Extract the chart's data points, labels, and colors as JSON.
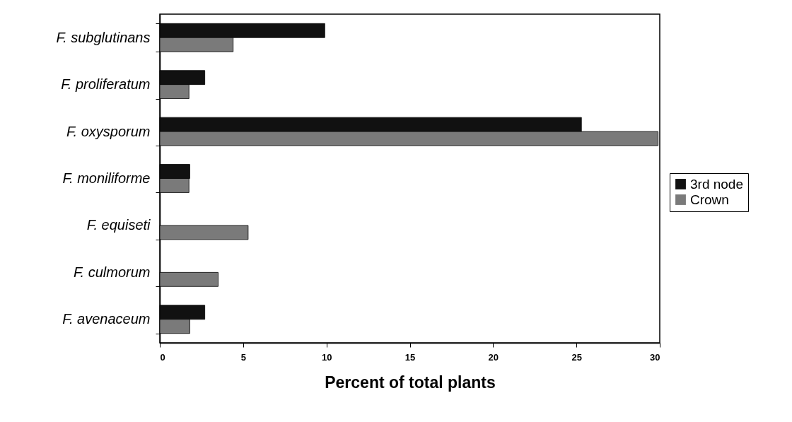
{
  "chart_data": {
    "type": "bar",
    "orientation": "horizontal",
    "xlabel": "Percent of total plants",
    "categories": [
      "F. subglutinans",
      "F. proliferatum",
      "F. oxysporum",
      "F. moniliforme",
      "F. equiseti",
      "F. culmorum",
      "F. avenaceum"
    ],
    "series": [
      {
        "name": "3rd node",
        "color": "#111111",
        "values": [
          9.9,
          2.7,
          25.3,
          1.8,
          null,
          null,
          2.7
        ]
      },
      {
        "name": "Crown",
        "color": "#7a7a7a",
        "values": [
          4.4,
          1.75,
          29.9,
          1.75,
          5.3,
          3.5,
          1.8
        ]
      }
    ],
    "xlim": [
      0,
      30
    ],
    "xticks": [
      0,
      5,
      10,
      15,
      20,
      25,
      30
    ],
    "grid": false,
    "legend": "right"
  }
}
